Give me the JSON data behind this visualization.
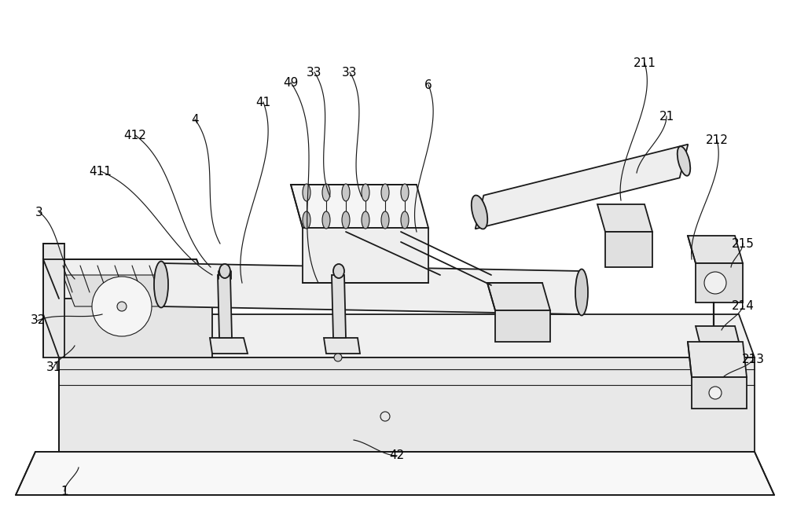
{
  "bg_color": "#ffffff",
  "lc": "#1a1a1a",
  "figsize": [
    10.0,
    6.44
  ],
  "dpi": 100,
  "lw_main": 1.3,
  "lw_thin": 0.8,
  "fc_light": "#f5f5f5",
  "fc_mid": "#e8e8e8",
  "fc_dark": "#d8d8d8",
  "fs_label": 11
}
